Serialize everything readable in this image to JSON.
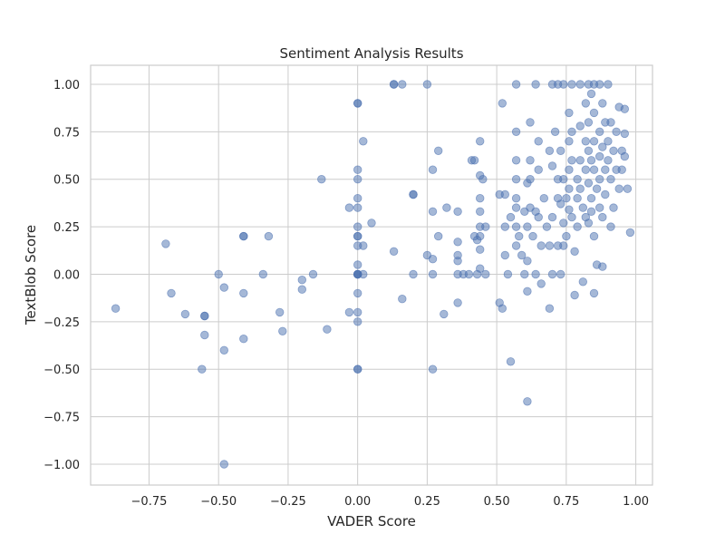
{
  "chart_data": {
    "type": "scatter",
    "title": "Sentiment Analysis Results",
    "xlabel": "VADER Score",
    "ylabel": "TextBlob Score",
    "xlim": [
      -0.96,
      1.06
    ],
    "ylim": [
      -1.11,
      1.1
    ],
    "xticks": [
      -0.75,
      -0.5,
      -0.25,
      0.0,
      0.25,
      0.5,
      0.75,
      1.0
    ],
    "xtick_labels": [
      "−0.75",
      "−0.50",
      "−0.25",
      "0.00",
      "0.25",
      "0.50",
      "0.75",
      "1.00"
    ],
    "yticks": [
      -1.0,
      -0.75,
      -0.5,
      -0.25,
      0.0,
      0.25,
      0.5,
      0.75,
      1.0
    ],
    "ytick_labels": [
      "−1.00",
      "−0.75",
      "−0.50",
      "−0.25",
      "0.00",
      "0.25",
      "0.50",
      "0.75",
      "1.00"
    ],
    "grid": true,
    "legend": "none",
    "color": "#4c72b0",
    "alpha": 0.5,
    "points": [
      [
        -0.87,
        -0.18
      ],
      [
        -0.69,
        0.16
      ],
      [
        -0.67,
        -0.1
      ],
      [
        -0.62,
        -0.21
      ],
      [
        -0.55,
        -0.22
      ],
      [
        -0.55,
        -0.22
      ],
      [
        -0.55,
        -0.32
      ],
      [
        -0.56,
        -0.5
      ],
      [
        -0.5,
        0.0
      ],
      [
        -0.48,
        -0.07
      ],
      [
        -0.48,
        -0.4
      ],
      [
        -0.48,
        -1.0
      ],
      [
        -0.41,
        0.2
      ],
      [
        -0.41,
        0.2
      ],
      [
        -0.41,
        -0.1
      ],
      [
        -0.41,
        -0.34
      ],
      [
        -0.34,
        0.0
      ],
      [
        -0.32,
        0.2
      ],
      [
        -0.28,
        -0.2
      ],
      [
        -0.27,
        -0.3
      ],
      [
        -0.2,
        -0.03
      ],
      [
        -0.2,
        -0.08
      ],
      [
        -0.16,
        0.0
      ],
      [
        -0.13,
        0.5
      ],
      [
        -0.11,
        -0.29
      ],
      [
        -0.03,
        0.35
      ],
      [
        -0.03,
        -0.2
      ],
      [
        0.0,
        0.9
      ],
      [
        0.0,
        0.9
      ],
      [
        0.0,
        0.55
      ],
      [
        0.0,
        0.5
      ],
      [
        0.0,
        0.4
      ],
      [
        0.0,
        0.35
      ],
      [
        0.0,
        0.25
      ],
      [
        0.0,
        0.2
      ],
      [
        0.0,
        0.2
      ],
      [
        0.0,
        0.15
      ],
      [
        0.0,
        0.05
      ],
      [
        0.0,
        0.0
      ],
      [
        0.0,
        0.0
      ],
      [
        0.0,
        0.0
      ],
      [
        0.0,
        0.0
      ],
      [
        0.0,
        -0.1
      ],
      [
        0.0,
        -0.2
      ],
      [
        0.0,
        -0.25
      ],
      [
        0.0,
        -0.5
      ],
      [
        0.0,
        -0.5
      ],
      [
        0.02,
        0.15
      ],
      [
        0.02,
        0.0
      ],
      [
        0.02,
        0.7
      ],
      [
        0.05,
        0.27
      ],
      [
        0.13,
        1.0
      ],
      [
        0.13,
        1.0
      ],
      [
        0.16,
        1.0
      ],
      [
        0.13,
        0.12
      ],
      [
        0.16,
        -0.13
      ],
      [
        0.2,
        0.42
      ],
      [
        0.2,
        0.42
      ],
      [
        0.2,
        0.0
      ],
      [
        0.25,
        1.0
      ],
      [
        0.25,
        0.1
      ],
      [
        0.27,
        0.33
      ],
      [
        0.27,
        0.55
      ],
      [
        0.27,
        0.08
      ],
      [
        0.27,
        0.0
      ],
      [
        0.27,
        -0.5
      ],
      [
        0.29,
        0.65
      ],
      [
        0.29,
        0.2
      ],
      [
        0.31,
        -0.21
      ],
      [
        0.32,
        0.35
      ],
      [
        0.36,
        0.33
      ],
      [
        0.36,
        0.17
      ],
      [
        0.36,
        0.1
      ],
      [
        0.36,
        0.07
      ],
      [
        0.36,
        0.0
      ],
      [
        0.36,
        -0.15
      ],
      [
        0.38,
        0.0
      ],
      [
        0.4,
        0.0
      ],
      [
        0.41,
        0.6
      ],
      [
        0.42,
        0.6
      ],
      [
        0.42,
        0.2
      ],
      [
        0.43,
        0.18
      ],
      [
        0.43,
        0.0
      ],
      [
        0.44,
        0.7
      ],
      [
        0.44,
        0.52
      ],
      [
        0.44,
        0.4
      ],
      [
        0.44,
        0.33
      ],
      [
        0.44,
        0.25
      ],
      [
        0.44,
        0.2
      ],
      [
        0.44,
        0.13
      ],
      [
        0.44,
        0.03
      ],
      [
        0.45,
        0.5
      ],
      [
        0.46,
        0.25
      ],
      [
        0.46,
        0.0
      ],
      [
        0.51,
        0.42
      ],
      [
        0.51,
        -0.15
      ],
      [
        0.52,
        0.9
      ],
      [
        0.52,
        -0.18
      ],
      [
        0.53,
        0.42
      ],
      [
        0.53,
        0.25
      ],
      [
        0.53,
        0.1
      ],
      [
        0.54,
        0.0
      ],
      [
        0.55,
        0.3
      ],
      [
        0.55,
        -0.46
      ],
      [
        0.57,
        1.0
      ],
      [
        0.57,
        0.75
      ],
      [
        0.57,
        0.6
      ],
      [
        0.57,
        0.5
      ],
      [
        0.57,
        0.4
      ],
      [
        0.57,
        0.35
      ],
      [
        0.57,
        0.25
      ],
      [
        0.57,
        0.15
      ],
      [
        0.58,
        0.2
      ],
      [
        0.59,
        0.1
      ],
      [
        0.6,
        0.33
      ],
      [
        0.6,
        0.0
      ],
      [
        0.61,
        0.48
      ],
      [
        0.61,
        0.25
      ],
      [
        0.61,
        0.07
      ],
      [
        0.61,
        -0.09
      ],
      [
        0.61,
        -0.67
      ],
      [
        0.62,
        0.8
      ],
      [
        0.62,
        0.6
      ],
      [
        0.62,
        0.5
      ],
      [
        0.62,
        0.35
      ],
      [
        0.63,
        0.2
      ],
      [
        0.64,
        1.0
      ],
      [
        0.64,
        0.33
      ],
      [
        0.64,
        0.0
      ],
      [
        0.65,
        0.7
      ],
      [
        0.65,
        0.55
      ],
      [
        0.65,
        0.3
      ],
      [
        0.66,
        0.15
      ],
      [
        0.66,
        -0.05
      ],
      [
        0.67,
        0.4
      ],
      [
        0.68,
        0.25
      ],
      [
        0.69,
        0.65
      ],
      [
        0.69,
        0.15
      ],
      [
        0.69,
        -0.18
      ],
      [
        0.7,
        1.0
      ],
      [
        0.7,
        0.57
      ],
      [
        0.7,
        0.3
      ],
      [
        0.7,
        0.0
      ],
      [
        0.71,
        0.75
      ],
      [
        0.72,
        1.0
      ],
      [
        0.72,
        0.5
      ],
      [
        0.72,
        0.4
      ],
      [
        0.72,
        0.15
      ],
      [
        0.73,
        0.65
      ],
      [
        0.73,
        0.37
      ],
      [
        0.73,
        0.0
      ],
      [
        0.74,
        1.0
      ],
      [
        0.74,
        0.5
      ],
      [
        0.74,
        0.27
      ],
      [
        0.74,
        0.15
      ],
      [
        0.75,
        0.4
      ],
      [
        0.75,
        0.2
      ],
      [
        0.76,
        0.85
      ],
      [
        0.76,
        0.7
      ],
      [
        0.76,
        0.55
      ],
      [
        0.76,
        0.45
      ],
      [
        0.76,
        0.34
      ],
      [
        0.77,
        1.0
      ],
      [
        0.77,
        0.75
      ],
      [
        0.77,
        0.6
      ],
      [
        0.77,
        0.3
      ],
      [
        0.78,
        0.12
      ],
      [
        0.78,
        -0.11
      ],
      [
        0.79,
        0.5
      ],
      [
        0.79,
        0.4
      ],
      [
        0.79,
        0.25
      ],
      [
        0.8,
        1.0
      ],
      [
        0.8,
        0.78
      ],
      [
        0.8,
        0.6
      ],
      [
        0.8,
        0.45
      ],
      [
        0.81,
        0.35
      ],
      [
        0.81,
        -0.04
      ],
      [
        0.82,
        0.9
      ],
      [
        0.82,
        0.7
      ],
      [
        0.82,
        0.55
      ],
      [
        0.82,
        0.3
      ],
      [
        0.83,
        1.0
      ],
      [
        0.83,
        0.8
      ],
      [
        0.83,
        0.65
      ],
      [
        0.83,
        0.48
      ],
      [
        0.83,
        0.27
      ],
      [
        0.84,
        0.95
      ],
      [
        0.84,
        0.6
      ],
      [
        0.84,
        0.4
      ],
      [
        0.84,
        0.33
      ],
      [
        0.85,
        1.0
      ],
      [
        0.85,
        0.85
      ],
      [
        0.85,
        0.7
      ],
      [
        0.85,
        0.55
      ],
      [
        0.85,
        0.2
      ],
      [
        0.85,
        -0.1
      ],
      [
        0.86,
        0.45
      ],
      [
        0.86,
        0.05
      ],
      [
        0.87,
        1.0
      ],
      [
        0.87,
        0.75
      ],
      [
        0.87,
        0.62
      ],
      [
        0.87,
        0.5
      ],
      [
        0.87,
        0.35
      ],
      [
        0.88,
        0.9
      ],
      [
        0.88,
        0.67
      ],
      [
        0.88,
        0.3
      ],
      [
        0.88,
        0.04
      ],
      [
        0.89,
        0.8
      ],
      [
        0.89,
        0.55
      ],
      [
        0.89,
        0.42
      ],
      [
        0.9,
        1.0
      ],
      [
        0.9,
        0.7
      ],
      [
        0.9,
        0.6
      ],
      [
        0.91,
        0.8
      ],
      [
        0.91,
        0.5
      ],
      [
        0.91,
        0.25
      ],
      [
        0.92,
        0.65
      ],
      [
        0.92,
        0.35
      ],
      [
        0.93,
        0.75
      ],
      [
        0.93,
        0.55
      ],
      [
        0.94,
        0.88
      ],
      [
        0.94,
        0.45
      ],
      [
        0.95,
        0.65
      ],
      [
        0.95,
        0.55
      ],
      [
        0.96,
        0.74
      ],
      [
        0.96,
        0.62
      ],
      [
        0.96,
        0.87
      ],
      [
        0.97,
        0.45
      ],
      [
        0.98,
        0.22
      ]
    ]
  }
}
